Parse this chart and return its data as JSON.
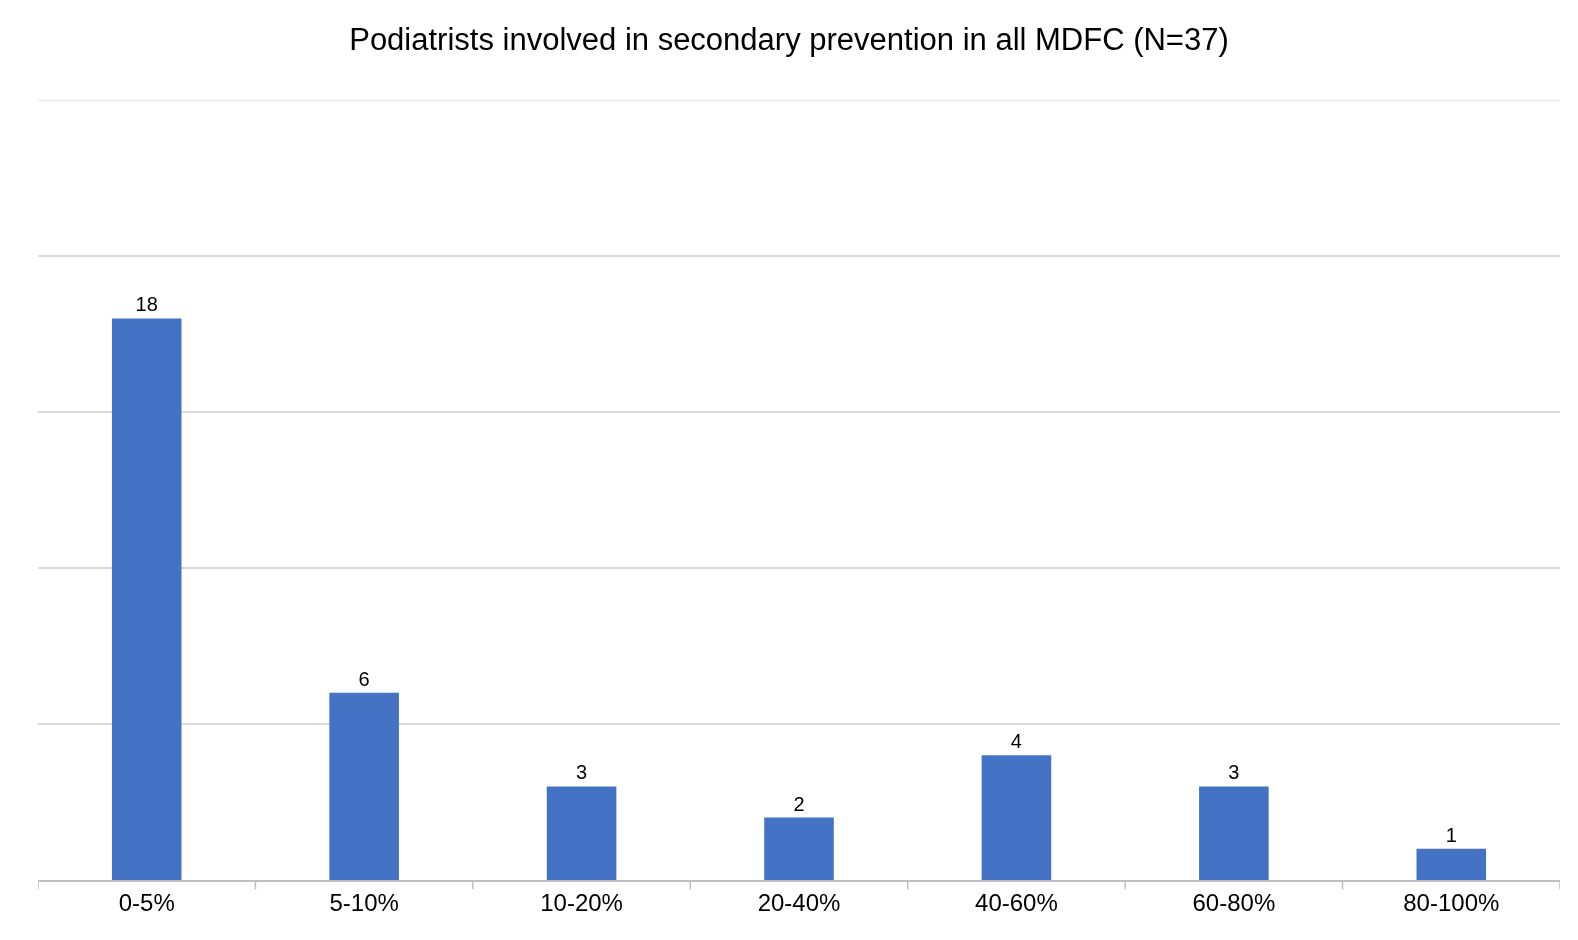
{
  "chart_data": {
    "type": "bar",
    "title": "Podiatrists involved in secondary prevention in all MDFC (N=37)",
    "categories": [
      "0-5%",
      "5-10%",
      "10-20%",
      "20-40%",
      "40-60%",
      "60-80%",
      "80-100%"
    ],
    "values": [
      18,
      6,
      3,
      2,
      4,
      3,
      1
    ],
    "color": "#4472c4",
    "ylim": [
      0,
      25
    ],
    "yticks": [
      {
        "value": 0,
        "label": null
      },
      {
        "value": 5,
        "label": null
      },
      {
        "value": 10,
        "label": null
      },
      {
        "value": 15,
        "label": null
      },
      {
        "value": 20,
        "label": null
      },
      {
        "value": 25,
        "label": null
      }
    ],
    "tick_labels": "x",
    "grid": "y",
    "data_labels": true,
    "legend": false
  }
}
